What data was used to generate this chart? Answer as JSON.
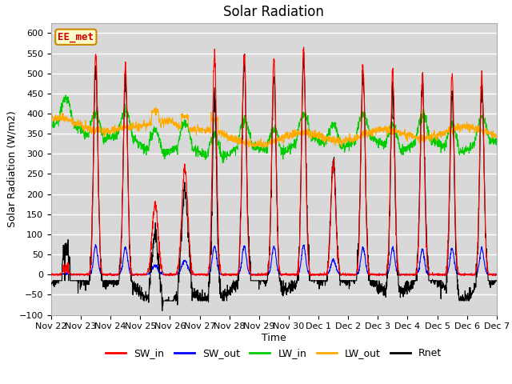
{
  "title": "Solar Radiation",
  "xlabel": "Time",
  "ylabel": "Solar Radiation (W/m2)",
  "ylim": [
    -100,
    625
  ],
  "yticks": [
    -100,
    -50,
    0,
    50,
    100,
    150,
    200,
    250,
    300,
    350,
    400,
    450,
    500,
    550,
    600
  ],
  "num_days": 15,
  "colors": {
    "SW_in": "#ff0000",
    "SW_out": "#0000ff",
    "LW_in": "#00cc00",
    "LW_out": "#ffaa00",
    "Rnet": "#000000"
  },
  "annotation_text": "EE_met",
  "annotation_box_color": "#ffffcc",
  "annotation_border_color": "#cc8800",
  "annotation_text_color": "#cc0000",
  "background_color": "#d8d8d8",
  "grid_color": "#ffffff",
  "title_fontsize": 12,
  "label_fontsize": 9,
  "tick_fontsize": 8
}
